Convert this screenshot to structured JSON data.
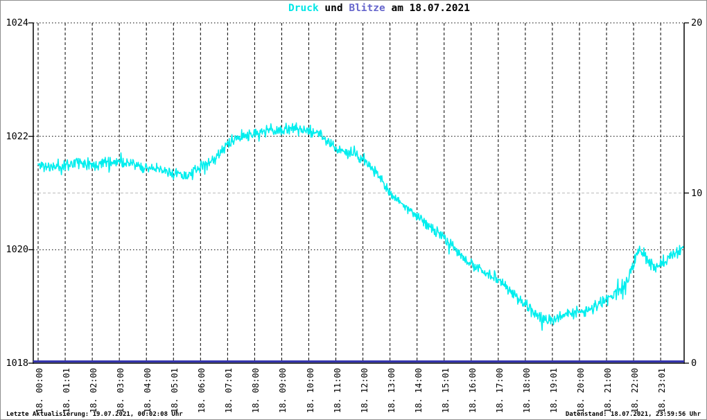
{
  "title": {
    "full": "Druck und Blitze am 18.07.2021",
    "segments": [
      {
        "text": "Druck",
        "color": "#00e6e6",
        "name": "title-word-druck"
      },
      {
        "text": " und ",
        "color": "#000000",
        "name": "title-word-und"
      },
      {
        "text": "Blitze",
        "color": "#6666cc",
        "name": "title-word-blitze"
      },
      {
        "text": " am 18.07.2021",
        "color": "#000000",
        "name": "title-word-date"
      }
    ]
  },
  "footer": {
    "last_update": "Letzte Aktualisierung: 19.07.2021, 00:02:08 Uhr",
    "data_status": "Datenstand: 18.07.2021, 23:59:56 Uhr"
  },
  "colors": {
    "pressure_line": "#00eeee",
    "lightning_line": "#3434ad",
    "major_grid": "#000000",
    "minor_grid": "#c4c4c4",
    "axis": "#000000"
  },
  "chart_data": {
    "type": "line",
    "title": "Druck und Blitze am 18.07.2021",
    "x_axis": {
      "unit": "time of day (18.07.2021)",
      "range_hours": [
        0,
        24
      ],
      "tick_labels": [
        "18. 00:00",
        "18. 01:01",
        "18. 02:00",
        "18. 03:00",
        "18. 04:00",
        "18. 05:01",
        "18. 06:00",
        "18. 07:01",
        "18. 08:00",
        "18. 09:00",
        "18. 10:00",
        "18. 11:00",
        "18. 12:00",
        "18. 13:00",
        "18. 14:00",
        "18. 15:01",
        "18. 16:00",
        "18. 17:00",
        "18. 18:00",
        "18. 19:01",
        "18. 20:00",
        "18. 21:00",
        "18. 22:00",
        "18. 23:01"
      ],
      "grid": "dashed-black-every-hour"
    },
    "y_axis_left": {
      "series": "Druck",
      "range": [
        1018,
        1024
      ],
      "ticks": [
        1024,
        1022,
        1020,
        1018
      ],
      "major_gridlines": [
        1024,
        1022,
        1020
      ],
      "minor_gridlines": [
        1021
      ],
      "grid": "dotted-black-major, gray-dashed-minor"
    },
    "y_axis_right": {
      "series": "Blitze",
      "range": [
        0,
        20
      ],
      "ticks": [
        20,
        10,
        0
      ]
    },
    "series": [
      {
        "name": "Druck",
        "axis": "left",
        "color": "#00eeee",
        "style": "noisy 1-minute line",
        "anchor_points_hour_hpa": [
          [
            0.0,
            1021.5
          ],
          [
            0.5,
            1021.45
          ],
          [
            1.0,
            1021.5
          ],
          [
            1.5,
            1021.55
          ],
          [
            2.0,
            1021.5
          ],
          [
            2.5,
            1021.55
          ],
          [
            3.0,
            1021.55
          ],
          [
            3.5,
            1021.5
          ],
          [
            4.0,
            1021.45
          ],
          [
            4.5,
            1021.4
          ],
          [
            5.0,
            1021.35
          ],
          [
            5.5,
            1021.3
          ],
          [
            6.0,
            1021.45
          ],
          [
            6.5,
            1021.6
          ],
          [
            7.0,
            1021.85
          ],
          [
            7.5,
            1022.0
          ],
          [
            8.0,
            1022.05
          ],
          [
            8.5,
            1022.1
          ],
          [
            9.0,
            1022.1
          ],
          [
            9.5,
            1022.15
          ],
          [
            10.0,
            1022.1
          ],
          [
            10.5,
            1022.0
          ],
          [
            11.0,
            1021.8
          ],
          [
            11.5,
            1021.7
          ],
          [
            12.0,
            1021.6
          ],
          [
            12.5,
            1021.35
          ],
          [
            13.0,
            1021.0
          ],
          [
            13.5,
            1020.8
          ],
          [
            14.0,
            1020.6
          ],
          [
            14.5,
            1020.4
          ],
          [
            15.0,
            1020.2
          ],
          [
            15.5,
            1019.95
          ],
          [
            16.0,
            1019.75
          ],
          [
            16.5,
            1019.6
          ],
          [
            17.0,
            1019.45
          ],
          [
            17.5,
            1019.25
          ],
          [
            18.0,
            1019.05
          ],
          [
            18.5,
            1018.8
          ],
          [
            19.0,
            1018.75
          ],
          [
            19.5,
            1018.85
          ],
          [
            20.0,
            1018.9
          ],
          [
            20.5,
            1019.0
          ],
          [
            21.0,
            1019.1
          ],
          [
            21.5,
            1019.3
          ],
          [
            21.8,
            1019.5
          ],
          [
            22.0,
            1019.75
          ],
          [
            22.2,
            1020.0
          ],
          [
            22.5,
            1019.85
          ],
          [
            22.8,
            1019.65
          ],
          [
            23.0,
            1019.75
          ],
          [
            23.5,
            1019.9
          ],
          [
            23.9,
            1020.05
          ]
        ],
        "noise": {
          "seed": 11,
          "amplitude_hpa": 0.1,
          "spike_chance": 0.02,
          "spike_amplitude_hpa": 0.45
        }
      },
      {
        "name": "Blitze",
        "axis": "right",
        "color": "#3434ad",
        "style": "thick flat line",
        "anchor_points_hour_count": [
          [
            0.0,
            0
          ],
          [
            23.9,
            0
          ]
        ]
      }
    ],
    "legend_position": "none (series named in title)"
  }
}
